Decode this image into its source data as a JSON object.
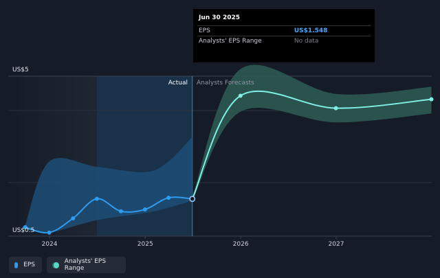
{
  "tooltip": {
    "date": "Jun 30 2025",
    "rows": [
      {
        "label": "EPS",
        "value": "US$1.548"
      },
      {
        "label": "Analysts' EPS Range",
        "value": "No data"
      }
    ]
  },
  "labels": {
    "actual": "Actual",
    "forecasts": "Analysts Forecasts"
  },
  "legend": {
    "eps": "EPS",
    "range": "Analysts' EPS Range"
  },
  "colors": {
    "background": "#161c27",
    "eps_line": "#2f9cf0",
    "forecast_line": "#7ef0e4",
    "forecast_band": "#2c5a52",
    "actual_band": "#1d4d75"
  },
  "chart_data": {
    "type": "line",
    "ylim": [
      0.5,
      5
    ],
    "ytick_labels": [
      "US$0.5",
      "US$5"
    ],
    "x_ticks": [
      "2024",
      "2025",
      "2026",
      "2027"
    ],
    "series": [
      {
        "name": "EPS",
        "points": [
          {
            "x": "2023-09-30",
            "y": 0.75
          },
          {
            "x": "2023-12-31",
            "y": 0.6
          },
          {
            "x": "2024-03-31",
            "y": 1.0
          },
          {
            "x": "2024-06-30",
            "y": 1.55
          },
          {
            "x": "2024-09-30",
            "y": 1.2
          },
          {
            "x": "2024-12-31",
            "y": 1.25
          },
          {
            "x": "2025-03-31",
            "y": 1.58
          },
          {
            "x": "2025-06-30",
            "y": 1.548
          }
        ]
      },
      {
        "name": "EPS forecast",
        "points": [
          {
            "x": "2025-06-30",
            "y": 1.548
          },
          {
            "x": "2025-12-31",
            "y": 4.45
          },
          {
            "x": "2026-12-31",
            "y": 4.1
          },
          {
            "x": "2027-12-31",
            "y": 4.35
          }
        ]
      }
    ],
    "forecast_range": [
      {
        "x": "2025-06-30",
        "low": 1.5,
        "high": 1.6
      },
      {
        "x": "2025-12-31",
        "low": 4.0,
        "high": 5.2
      },
      {
        "x": "2026-12-31",
        "low": 3.7,
        "high": 4.5
      },
      {
        "x": "2027-12-31",
        "low": 3.95,
        "high": 4.7
      }
    ],
    "actual_range": [
      {
        "x": "2023-09-30",
        "low": 0.7,
        "high": 0.8
      },
      {
        "x": "2023-12-31",
        "low": 0.6,
        "high": 2.6
      },
      {
        "x": "2024-06-30",
        "low": 0.95,
        "high": 2.45
      },
      {
        "x": "2024-12-31",
        "low": 1.15,
        "high": 2.3
      },
      {
        "x": "2025-03-31",
        "low": 1.3,
        "high": 2.6
      },
      {
        "x": "2025-06-30",
        "low": 1.5,
        "high": 3.3
      }
    ]
  }
}
